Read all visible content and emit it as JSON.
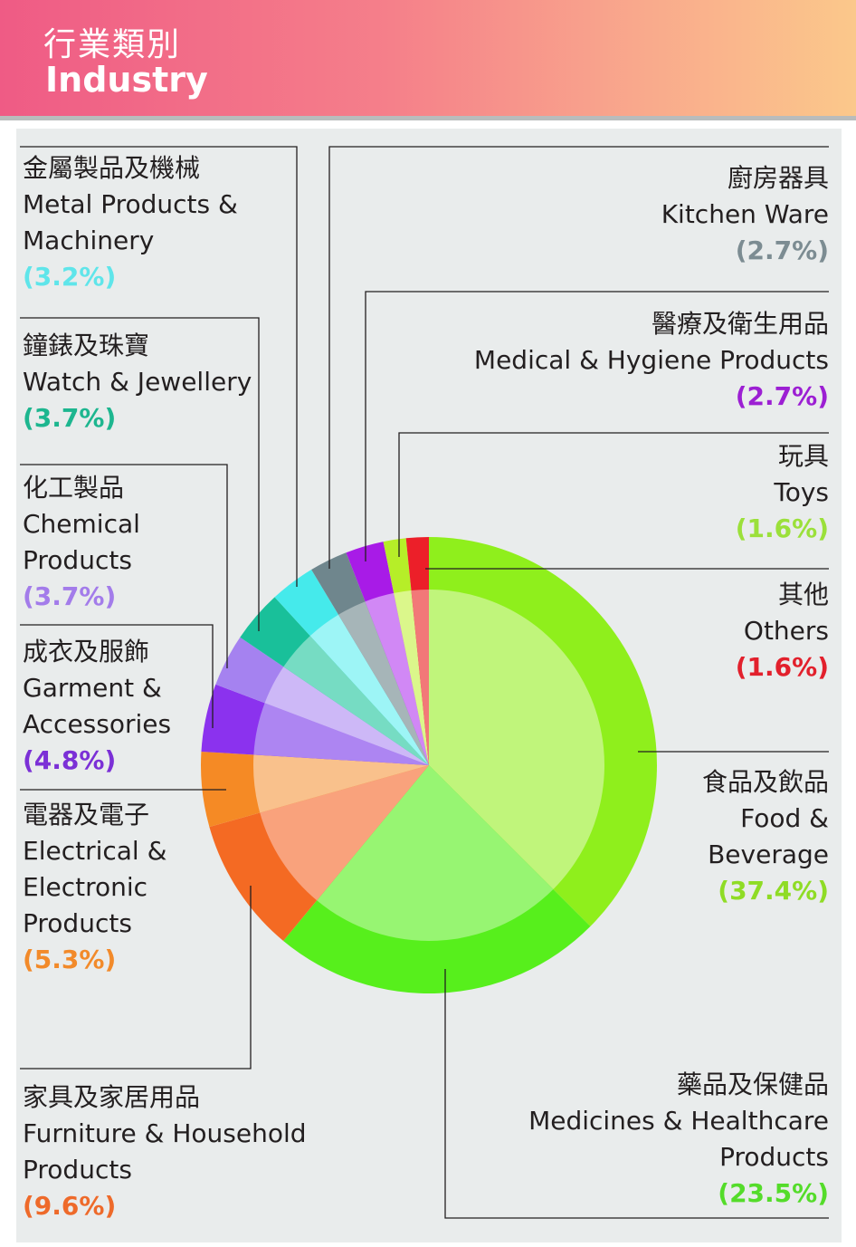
{
  "header": {
    "title_zh": "行業類別",
    "title_en": "Industry"
  },
  "chart_data": {
    "type": "pie",
    "title": "行業類別 Industry",
    "unit": "%",
    "slices": [
      {
        "zh": "食品及飲品",
        "en": "Food & Beverage",
        "pct": "(37.4%)",
        "value": 37.4,
        "color": "#8fef1c",
        "inner": "#c0f57b"
      },
      {
        "zh": "藥品及保健品",
        "en": "Medicines & Healthcare Products",
        "pct": "(23.5%)",
        "value": 23.5,
        "color": "#57ef1c",
        "inner": "#97f572"
      },
      {
        "zh": "家具及家居用品",
        "en": "Furniture & Household Products",
        "pct": "(9.6%)",
        "value": 9.6,
        "color": "#f46a23",
        "inner": "#f9a27c"
      },
      {
        "zh": "電器及電子",
        "en": "Electrical & Electronic Products",
        "pct": "(5.3%)",
        "value": 5.3,
        "color": "#f58a25",
        "inner": "#f9c18c"
      },
      {
        "zh": "成衣及服飾",
        "en": "Garment & Accessories",
        "pct": "(4.8%)",
        "value": 4.8,
        "color": "#8b32ee",
        "inner": "#ad85f2"
      },
      {
        "zh": "化工製品",
        "en": "Chemical Products",
        "pct": "(3.7%)",
        "value": 3.7,
        "color": "#a582f0",
        "inner": "#cdb8f7"
      },
      {
        "zh": "鐘錶及珠寶",
        "en": "Watch & Jewellery",
        "pct": "(3.7%)",
        "value": 3.7,
        "color": "#19c09a",
        "inner": "#76dcc3"
      },
      {
        "zh": "金屬製品及機械",
        "en": "Metal Products & Machinery",
        "pct": "(3.2%)",
        "value": 3.2,
        "color": "#45eaeb",
        "inner": "#9df5f6"
      },
      {
        "zh": "廚房器具",
        "en": "Kitchen Ware",
        "pct": "(2.7%)",
        "value": 2.7,
        "color": "#6f868d",
        "inner": "#a6b5b8"
      },
      {
        "zh": "醫療及衛生用品",
        "en": "Medical & Hygiene Products",
        "pct": "(2.7%)",
        "value": 2.7,
        "color": "#a81be7",
        "inner": "#d188f5"
      },
      {
        "zh": "玩具",
        "en": "Toys",
        "pct": "(1.6%)",
        "value": 1.6,
        "color": "#b6ee28",
        "inner": "#dbf78b"
      },
      {
        "zh": "其他",
        "en": "Others",
        "pct": "(1.6%)",
        "value": 1.6,
        "color": "#ec1f29",
        "inner": "#f27878"
      }
    ],
    "labels": {
      "metal": {
        "l1": "金屬製品及機械",
        "l2": "Metal Products &",
        "l3": "Machinery",
        "pct": "(3.2%)",
        "pct_color": "#5fe5ea"
      },
      "watch": {
        "l1": "鐘錶及珠寶",
        "l2": "Watch & Jewellery",
        "pct": "(3.7%)",
        "pct_color": "#1db68f"
      },
      "chemical": {
        "l1": "化工製品",
        "l2": "Chemical",
        "l3": "Products",
        "pct": "(3.7%)",
        "pct_color": "#a37cea"
      },
      "garment": {
        "l1": "成衣及服飾",
        "l2": "Garment &",
        "l3": "Accessories",
        "pct": "(4.8%)",
        "pct_color": "#7b30d6"
      },
      "electric": {
        "l1": "電器及電子",
        "l2": "Electrical &",
        "l3": "Electronic",
        "l4": "Products",
        "pct": "(5.3%)",
        "pct_color": "#f28a2a"
      },
      "furniture": {
        "l1": "家具及家居用品",
        "l2": "Furniture & Household",
        "l3": "Products",
        "pct": "(9.6%)",
        "pct_color": "#ee6a2a"
      },
      "kitchen": {
        "l1": "廚房器具",
        "l2": "Kitchen Ware",
        "pct": "(2.7%)",
        "pct_color": "#7c8c92"
      },
      "medical": {
        "l1": "醫療及衛生用品",
        "l2": "Medical & Hygiene Products",
        "pct": "(2.7%)",
        "pct_color": "#9c1fd3"
      },
      "toys": {
        "l1": "玩具",
        "l2": "Toys",
        "pct": "(1.6%)",
        "pct_color": "#9be03a"
      },
      "others": {
        "l1": "其他",
        "l2": "Others",
        "pct": "(1.6%)",
        "pct_color": "#e2202c"
      },
      "food": {
        "l1": "食品及飲品",
        "l2": "Food &",
        "l3": "Beverage",
        "pct": "(37.4%)",
        "pct_color": "#8fdc25"
      },
      "medicine": {
        "l1": "藥品及保健品",
        "l2": "Medicines & Healthcare",
        "l3": "Products",
        "pct": "(23.5%)",
        "pct_color": "#54dc2a"
      }
    }
  }
}
